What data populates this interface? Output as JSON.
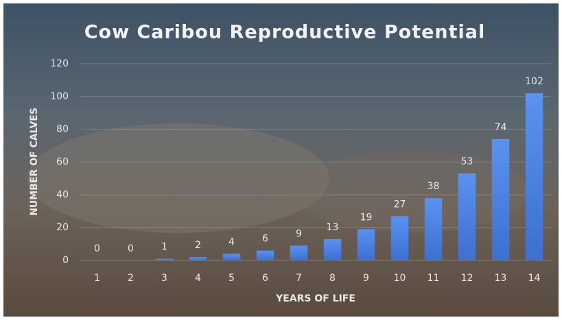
{
  "chart_data": {
    "type": "bar",
    "title": "Cow Caribou Reproductive Potential",
    "x_label": "YEARS OF LIFE",
    "y_label": "NUMBER OF CALVES",
    "categories": [
      "1",
      "2",
      "3",
      "4",
      "5",
      "6",
      "7",
      "8",
      "9",
      "10",
      "11",
      "12",
      "13",
      "14"
    ],
    "values": [
      0,
      0,
      1,
      2,
      4,
      6,
      9,
      13,
      19,
      27,
      38,
      53,
      74,
      102
    ],
    "color": "#4d86ea",
    "ylim": [
      0,
      120
    ],
    "yticks": [
      0,
      20,
      40,
      60,
      80,
      100,
      120
    ],
    "grid": true
  }
}
